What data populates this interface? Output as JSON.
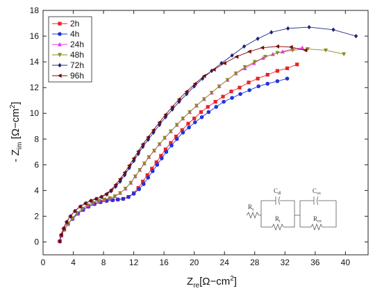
{
  "chart_data": {
    "type": "scatter",
    "xlabel": {
      "main": "Z",
      "sub": "re",
      "unit": "[Ω−cm",
      "sup": "2",
      "close": "]"
    },
    "ylabel": {
      "main": "- Z",
      "sub": "im",
      "unit": " [Ω−cm",
      "sup": "2",
      "close": "]"
    },
    "xlim": [
      0,
      43
    ],
    "ylim": [
      -1,
      18
    ],
    "xticks": [
      0,
      4,
      8,
      12,
      16,
      20,
      24,
      28,
      32,
      36,
      40
    ],
    "yticks": [
      0,
      2,
      4,
      6,
      8,
      10,
      12,
      14,
      16,
      18
    ],
    "grid": false,
    "legend_position": "top-left",
    "series": [
      {
        "name": "2h",
        "color": "#e8232a",
        "marker": "square",
        "points": [
          [
            2.2,
            0.05
          ],
          [
            2.4,
            0.5
          ],
          [
            2.8,
            0.95
          ],
          [
            3.3,
            1.4
          ],
          [
            3.9,
            1.8
          ],
          [
            4.6,
            2.2
          ],
          [
            5.3,
            2.5
          ],
          [
            6.0,
            2.75
          ],
          [
            6.8,
            2.95
          ],
          [
            7.6,
            3.1
          ],
          [
            8.4,
            3.2
          ],
          [
            9.2,
            3.25
          ],
          [
            9.9,
            3.3
          ],
          [
            10.6,
            3.35
          ],
          [
            11.3,
            3.5
          ],
          [
            12.0,
            3.8
          ],
          [
            12.6,
            4.2
          ],
          [
            13.2,
            4.7
          ],
          [
            13.8,
            5.2
          ],
          [
            14.4,
            5.7
          ],
          [
            15.0,
            6.2
          ],
          [
            15.6,
            6.7
          ],
          [
            16.2,
            7.2
          ],
          [
            16.9,
            7.7
          ],
          [
            17.6,
            8.2
          ],
          [
            18.4,
            8.7
          ],
          [
            19.2,
            9.2
          ],
          [
            20.0,
            9.6
          ],
          [
            20.9,
            10.1
          ],
          [
            21.8,
            10.5
          ],
          [
            22.8,
            10.9
          ],
          [
            23.8,
            11.3
          ],
          [
            24.9,
            11.7
          ],
          [
            26.0,
            12.0
          ],
          [
            27.2,
            12.4
          ],
          [
            28.4,
            12.7
          ],
          [
            29.7,
            13.0
          ],
          [
            31.0,
            13.3
          ],
          [
            32.3,
            13.5
          ],
          [
            33.6,
            13.8
          ]
        ]
      },
      {
        "name": "4h",
        "color": "#2233dd",
        "marker": "circle",
        "points": [
          [
            2.2,
            0.05
          ],
          [
            2.4,
            0.5
          ],
          [
            2.8,
            0.95
          ],
          [
            3.3,
            1.4
          ],
          [
            3.9,
            1.8
          ],
          [
            4.6,
            2.2
          ],
          [
            5.3,
            2.5
          ],
          [
            6.0,
            2.75
          ],
          [
            6.8,
            2.95
          ],
          [
            7.6,
            3.1
          ],
          [
            8.4,
            3.2
          ],
          [
            9.2,
            3.25
          ],
          [
            9.9,
            3.3
          ],
          [
            10.6,
            3.35
          ],
          [
            11.3,
            3.5
          ],
          [
            12.0,
            3.75
          ],
          [
            12.7,
            4.1
          ],
          [
            13.3,
            4.5
          ],
          [
            13.9,
            5.0
          ],
          [
            14.5,
            5.5
          ],
          [
            15.1,
            6.0
          ],
          [
            15.7,
            6.5
          ],
          [
            16.3,
            7.0
          ],
          [
            17.0,
            7.5
          ],
          [
            17.7,
            8.0
          ],
          [
            18.5,
            8.5
          ],
          [
            19.3,
            8.9
          ],
          [
            20.1,
            9.3
          ],
          [
            21.0,
            9.7
          ],
          [
            21.9,
            10.1
          ],
          [
            22.9,
            10.5
          ],
          [
            23.9,
            10.9
          ],
          [
            25.0,
            11.2
          ],
          [
            26.1,
            11.5
          ],
          [
            27.3,
            11.8
          ],
          [
            28.5,
            12.1
          ],
          [
            29.7,
            12.3
          ],
          [
            31.0,
            12.5
          ],
          [
            32.3,
            12.7
          ]
        ]
      },
      {
        "name": "24h",
        "color": "#ee33ee",
        "marker": "triangle-up",
        "points": [
          [
            2.2,
            0.05
          ],
          [
            2.4,
            0.5
          ],
          [
            2.8,
            0.95
          ],
          [
            3.3,
            1.4
          ],
          [
            3.9,
            1.85
          ],
          [
            4.5,
            2.25
          ],
          [
            5.2,
            2.6
          ],
          [
            5.9,
            2.85
          ],
          [
            6.6,
            3.05
          ],
          [
            7.4,
            3.2
          ],
          [
            8.1,
            3.3
          ],
          [
            8.8,
            3.4
          ],
          [
            9.5,
            3.55
          ],
          [
            10.2,
            3.8
          ],
          [
            10.9,
            4.15
          ],
          [
            11.6,
            4.6
          ],
          [
            12.2,
            5.1
          ],
          [
            12.8,
            5.6
          ],
          [
            13.4,
            6.1
          ],
          [
            14.0,
            6.6
          ],
          [
            14.7,
            7.1
          ],
          [
            15.4,
            7.6
          ],
          [
            16.1,
            8.1
          ],
          [
            16.9,
            8.6
          ],
          [
            17.7,
            9.1
          ],
          [
            18.5,
            9.6
          ],
          [
            19.4,
            10.1
          ],
          [
            20.3,
            10.6
          ],
          [
            21.3,
            11.1
          ],
          [
            22.3,
            11.6
          ],
          [
            23.3,
            12.1
          ],
          [
            24.4,
            12.6
          ],
          [
            25.5,
            13.1
          ],
          [
            26.7,
            13.5
          ],
          [
            27.9,
            13.9
          ],
          [
            29.1,
            14.3
          ],
          [
            30.4,
            14.6
          ],
          [
            31.7,
            14.8
          ],
          [
            33.0,
            15.0
          ],
          [
            34.3,
            15.1
          ]
        ]
      },
      {
        "name": "48h",
        "color": "#8a8a1a",
        "marker": "triangle-down",
        "points": [
          [
            2.2,
            0.05
          ],
          [
            2.4,
            0.5
          ],
          [
            2.8,
            0.95
          ],
          [
            3.3,
            1.4
          ],
          [
            3.9,
            1.85
          ],
          [
            4.5,
            2.25
          ],
          [
            5.2,
            2.6
          ],
          [
            5.9,
            2.85
          ],
          [
            6.6,
            3.05
          ],
          [
            7.4,
            3.2
          ],
          [
            8.1,
            3.3
          ],
          [
            8.8,
            3.4
          ],
          [
            9.5,
            3.55
          ],
          [
            10.2,
            3.8
          ],
          [
            10.9,
            4.15
          ],
          [
            11.6,
            4.6
          ],
          [
            12.2,
            5.1
          ],
          [
            12.8,
            5.6
          ],
          [
            13.4,
            6.1
          ],
          [
            14.0,
            6.6
          ],
          [
            14.7,
            7.1
          ],
          [
            15.4,
            7.6
          ],
          [
            16.1,
            8.1
          ],
          [
            16.9,
            8.6
          ],
          [
            17.7,
            9.1
          ],
          [
            18.5,
            9.6
          ],
          [
            19.4,
            10.1
          ],
          [
            20.3,
            10.6
          ],
          [
            21.3,
            11.1
          ],
          [
            22.3,
            11.6
          ],
          [
            23.3,
            12.1
          ],
          [
            24.4,
            12.6
          ],
          [
            25.5,
            13.1
          ],
          [
            26.7,
            13.6
          ],
          [
            28.0,
            14.0
          ],
          [
            29.4,
            14.4
          ],
          [
            31.0,
            14.7
          ],
          [
            33.0,
            14.9
          ],
          [
            35.0,
            15.0
          ],
          [
            37.4,
            14.9
          ],
          [
            39.8,
            14.6
          ]
        ]
      },
      {
        "name": "72h",
        "color": "#1a237e",
        "marker": "diamond",
        "points": [
          [
            2.2,
            0.05
          ],
          [
            2.4,
            0.55
          ],
          [
            2.7,
            1.05
          ],
          [
            3.1,
            1.55
          ],
          [
            3.6,
            2.0
          ],
          [
            4.2,
            2.4
          ],
          [
            4.9,
            2.75
          ],
          [
            5.6,
            3.0
          ],
          [
            6.3,
            3.2
          ],
          [
            7.0,
            3.35
          ],
          [
            7.7,
            3.5
          ],
          [
            8.4,
            3.7
          ],
          [
            9.0,
            3.95
          ],
          [
            9.6,
            4.3
          ],
          [
            10.2,
            4.7
          ],
          [
            10.8,
            5.2
          ],
          [
            11.4,
            5.75
          ],
          [
            12.0,
            6.3
          ],
          [
            12.6,
            6.85
          ],
          [
            13.2,
            7.4
          ],
          [
            13.9,
            7.95
          ],
          [
            14.6,
            8.5
          ],
          [
            15.4,
            9.1
          ],
          [
            16.2,
            9.7
          ],
          [
            17.1,
            10.3
          ],
          [
            18.0,
            10.9
          ],
          [
            19.0,
            11.5
          ],
          [
            20.0,
            12.1
          ],
          [
            21.1,
            12.7
          ],
          [
            22.3,
            13.3
          ],
          [
            23.6,
            13.9
          ],
          [
            25.0,
            14.5
          ],
          [
            26.6,
            15.2
          ],
          [
            28.4,
            15.8
          ],
          [
            30.2,
            16.3
          ],
          [
            32.4,
            16.6
          ],
          [
            35.2,
            16.7
          ],
          [
            38.4,
            16.5
          ],
          [
            41.4,
            16.0
          ]
        ]
      },
      {
        "name": "96h",
        "color": "#7a0a0a",
        "marker": "triangle-left",
        "points": [
          [
            2.2,
            0.05
          ],
          [
            2.4,
            0.55
          ],
          [
            2.7,
            1.05
          ],
          [
            3.1,
            1.55
          ],
          [
            3.6,
            2.0
          ],
          [
            4.2,
            2.4
          ],
          [
            4.9,
            2.75
          ],
          [
            5.6,
            3.0
          ],
          [
            6.3,
            3.2
          ],
          [
            7.0,
            3.35
          ],
          [
            7.7,
            3.5
          ],
          [
            8.4,
            3.75
          ],
          [
            9.0,
            4.05
          ],
          [
            9.6,
            4.45
          ],
          [
            10.2,
            4.9
          ],
          [
            10.8,
            5.4
          ],
          [
            11.4,
            5.95
          ],
          [
            12.0,
            6.5
          ],
          [
            12.6,
            7.05
          ],
          [
            13.2,
            7.6
          ],
          [
            13.9,
            8.15
          ],
          [
            14.6,
            8.7
          ],
          [
            15.4,
            9.3
          ],
          [
            16.2,
            9.9
          ],
          [
            17.1,
            10.5
          ],
          [
            18.0,
            11.1
          ],
          [
            19.0,
            11.7
          ],
          [
            20.1,
            12.3
          ],
          [
            21.3,
            12.9
          ],
          [
            22.6,
            13.4
          ],
          [
            24.0,
            13.9
          ],
          [
            25.6,
            14.4
          ],
          [
            27.3,
            14.8
          ],
          [
            29.0,
            15.1
          ],
          [
            31.0,
            15.2
          ],
          [
            32.8,
            15.15
          ],
          [
            34.7,
            14.9
          ]
        ]
      }
    ],
    "circuit": {
      "labels": [
        "Rs",
        "Cdl",
        "Rt",
        "Cox",
        "Rox"
      ],
      "Rs": {
        "main": "R",
        "sub": "s"
      },
      "Cdl": {
        "main": "C",
        "sub": "dl"
      },
      "Rt": {
        "main": "R",
        "sub": "t"
      },
      "Cox": {
        "main": "C",
        "sub": "ox"
      },
      "Rox": {
        "main": "R",
        "sub": "ox"
      }
    }
  }
}
